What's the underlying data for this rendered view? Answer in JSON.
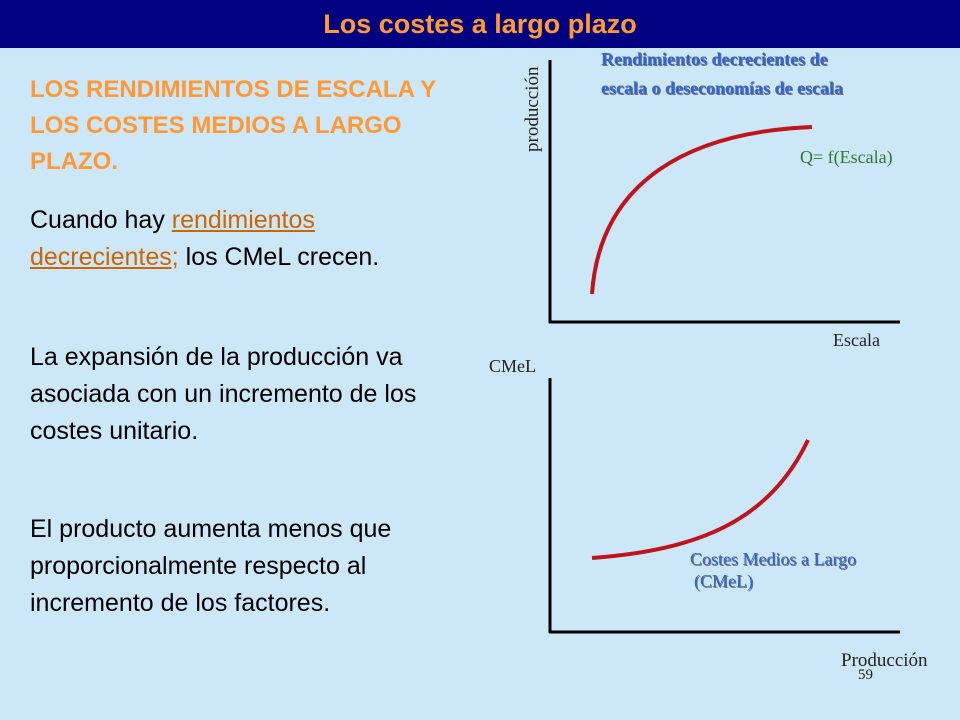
{
  "slide": {
    "title": "Los costes a largo plazo",
    "heading": "LOS RENDIMIENTOS DE ESCALA Y LOS COSTES MEDIOS A LARGO PLAZO.",
    "paragraph1": {
      "prefix": "Cuando hay ",
      "link": "rendimientos decrecientes;",
      "suffix": " los CMeL crecen."
    },
    "paragraph2": "La expansión de la producción va asociada con un incremento de los costes unitario.",
    "paragraph3": "El producto aumenta menos que proporcionalmente respecto al incremento de los factores.",
    "page_number": "59"
  },
  "top_graph": {
    "ylabel": "producción",
    "xlabel": "Escala",
    "caption_line1": "Rendimientos decrecientes de",
    "caption_line2": "escala o deseconomías de escala",
    "curve_label": "Q= f(Escala)",
    "curve_color": "#c0141c",
    "shape": "concave increasing"
  },
  "bottom_graph": {
    "ylabel": "CMeL",
    "xlabel": "Producción",
    "caption_line1": "Costes Medios a Largo",
    "caption_line2": "(CMeL)",
    "curve_color": "#c0141c",
    "shape": "convex increasing"
  },
  "colors": {
    "background": "#cce7f8",
    "title_bar": "#000080",
    "title_text": "#ff9933",
    "heading": "#ff9933",
    "link": "#cc6600",
    "caption_blue": "#3366cc",
    "label_green": "#2f7a2f"
  }
}
